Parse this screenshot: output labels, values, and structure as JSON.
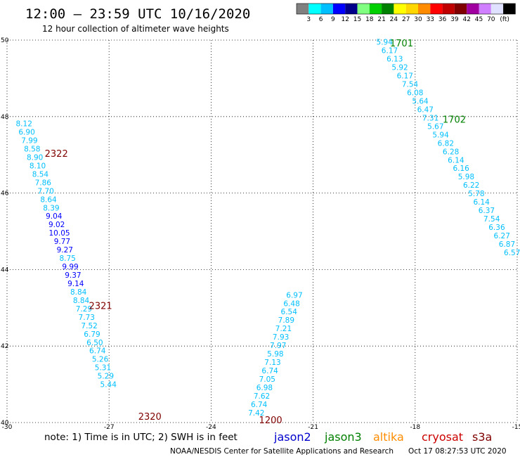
{
  "header": {
    "title": "12:00 – 23:59 UTC 10/16/2020",
    "subtitle": "12 hour collection of altimeter wave heights"
  },
  "colorbar": {
    "colors": [
      "#808080",
      "#00ffff",
      "#00bfff",
      "#0000ff",
      "#00008b",
      "#80ff80",
      "#00d000",
      "#008000",
      "#ffff00",
      "#ffd700",
      "#ff8c00",
      "#ff0000",
      "#c00000",
      "#800000",
      "#a000a0",
      "#d080ff",
      "#e0e0ff",
      "#000000"
    ],
    "labels": [
      "3",
      "6",
      "9",
      "12",
      "15",
      "18",
      "21",
      "24",
      "27",
      "30",
      "33",
      "36",
      "39",
      "42",
      "45",
      "70"
    ],
    "unit": "(ft)"
  },
  "map": {
    "lon_range": [
      -30,
      -15
    ],
    "lat_range": [
      40,
      50
    ],
    "x_ticks": [
      "-30",
      "-27",
      "-24",
      "-21",
      "-18",
      "-15"
    ],
    "y_ticks": [
      "40",
      "42",
      "44",
      "46",
      "48",
      "50"
    ],
    "grid": "dotted"
  },
  "satellite_colors": {
    "jason2": "#0000cd",
    "jason3": "#008000",
    "altika": "#ff8c00",
    "cryosat": "#cc0000",
    "s3a": "#800000"
  },
  "tracks": [
    {
      "label": "1701",
      "label_lon": -18.4,
      "label_lat": 49.93,
      "label_color": "#008000",
      "obs": [
        {
          "v": "5.94",
          "lon": -18.9,
          "lat": 49.95,
          "c": "#00bfff"
        },
        {
          "v": "6.17",
          "lon": -18.75,
          "lat": 49.73,
          "c": "#00bfff"
        },
        {
          "v": "6.13",
          "lon": -18.6,
          "lat": 49.51,
          "c": "#00bfff"
        },
        {
          "v": "5.92",
          "lon": -18.45,
          "lat": 49.29,
          "c": "#00bfff"
        },
        {
          "v": "6.17",
          "lon": -18.3,
          "lat": 49.07,
          "c": "#00bfff"
        },
        {
          "v": "7.54",
          "lon": -18.15,
          "lat": 48.85,
          "c": "#00bfff"
        },
        {
          "v": "6.08",
          "lon": -18.0,
          "lat": 48.63,
          "c": "#00bfff"
        },
        {
          "v": "5.64",
          "lon": -17.85,
          "lat": 48.41,
          "c": "#00bfff"
        },
        {
          "v": "6.47",
          "lon": -17.7,
          "lat": 48.19,
          "c": "#00bfff"
        },
        {
          "v": "7.31",
          "lon": -17.55,
          "lat": 47.97,
          "c": "#00bfff"
        },
        {
          "v": "5.67",
          "lon": -17.4,
          "lat": 47.75,
          "c": "#00bfff"
        },
        {
          "v": "5.94",
          "lon": -17.25,
          "lat": 47.53,
          "c": "#00bfff"
        }
      ]
    },
    {
      "label": "1702",
      "label_lon": -16.85,
      "label_lat": 47.93,
      "label_color": "#008000",
      "obs": [
        {
          "v": "6.82",
          "lon": -17.1,
          "lat": 47.31,
          "c": "#00bfff"
        },
        {
          "v": "6.28",
          "lon": -16.95,
          "lat": 47.09,
          "c": "#00bfff"
        },
        {
          "v": "6.14",
          "lon": -16.8,
          "lat": 46.87,
          "c": "#00bfff"
        },
        {
          "v": "6.16",
          "lon": -16.65,
          "lat": 46.65,
          "c": "#00bfff"
        },
        {
          "v": "5.98",
          "lon": -16.5,
          "lat": 46.43,
          "c": "#00bfff"
        },
        {
          "v": "6.22",
          "lon": -16.35,
          "lat": 46.21,
          "c": "#00bfff"
        },
        {
          "v": "5.78",
          "lon": -16.2,
          "lat": 45.99,
          "c": "#00bfff"
        },
        {
          "v": "6.14",
          "lon": -16.05,
          "lat": 45.77,
          "c": "#00bfff"
        },
        {
          "v": "6.37",
          "lon": -15.9,
          "lat": 45.55,
          "c": "#00bfff"
        },
        {
          "v": "7.54",
          "lon": -15.75,
          "lat": 45.33,
          "c": "#00bfff"
        },
        {
          "v": "6.36",
          "lon": -15.6,
          "lat": 45.11,
          "c": "#00bfff"
        },
        {
          "v": "6.27",
          "lon": -15.45,
          "lat": 44.89,
          "c": "#00bfff"
        },
        {
          "v": "6.87",
          "lon": -15.3,
          "lat": 44.67,
          "c": "#00bfff"
        },
        {
          "v": "6.57",
          "lon": -15.15,
          "lat": 44.45,
          "c": "#00bfff"
        }
      ]
    },
    {
      "label": "2322",
      "label_lon": -28.55,
      "label_lat": 47.04,
      "label_color": "#800000",
      "obs": [
        {
          "v": "8.12",
          "lon": -29.5,
          "lat": 47.82,
          "c": "#00bfff"
        },
        {
          "v": "6.90",
          "lon": -29.42,
          "lat": 47.6,
          "c": "#00bfff"
        },
        {
          "v": "7.99",
          "lon": -29.34,
          "lat": 47.38,
          "c": "#00bfff"
        },
        {
          "v": "8.58",
          "lon": -29.26,
          "lat": 47.16,
          "c": "#00bfff"
        },
        {
          "v": "8.90",
          "lon": -29.18,
          "lat": 46.94,
          "c": "#00bfff"
        },
        {
          "v": "8.10",
          "lon": -29.1,
          "lat": 46.72,
          "c": "#00bfff"
        },
        {
          "v": "8.54",
          "lon": -29.02,
          "lat": 46.5,
          "c": "#00bfff"
        },
        {
          "v": "7.86",
          "lon": -28.94,
          "lat": 46.28,
          "c": "#00bfff"
        },
        {
          "v": "7.70",
          "lon": -28.86,
          "lat": 46.06,
          "c": "#00bfff"
        },
        {
          "v": "8.64",
          "lon": -28.78,
          "lat": 45.84,
          "c": "#00bfff"
        },
        {
          "v": "8.39",
          "lon": -28.7,
          "lat": 45.62,
          "c": "#00bfff"
        },
        {
          "v": "9.04",
          "lon": -28.62,
          "lat": 45.4,
          "c": "#0000ff"
        },
        {
          "v": "9.02",
          "lon": -28.54,
          "lat": 45.18,
          "c": "#0000ff"
        },
        {
          "v": "10.05",
          "lon": -28.46,
          "lat": 44.96,
          "c": "#0000ff"
        },
        {
          "v": "9.77",
          "lon": -28.38,
          "lat": 44.74,
          "c": "#0000ff"
        }
      ]
    },
    {
      "label": "2321",
      "label_lon": -27.25,
      "label_lat": 43.06,
      "label_color": "#800000",
      "obs": [
        {
          "v": "9.27",
          "lon": -28.3,
          "lat": 44.52,
          "c": "#0000ff"
        },
        {
          "v": "8.75",
          "lon": -28.22,
          "lat": 44.3,
          "c": "#00bfff"
        },
        {
          "v": "9.99",
          "lon": -28.14,
          "lat": 44.08,
          "c": "#0000ff"
        },
        {
          "v": "9.37",
          "lon": -28.06,
          "lat": 43.86,
          "c": "#0000ff"
        },
        {
          "v": "9.14",
          "lon": -27.98,
          "lat": 43.64,
          "c": "#0000ff"
        },
        {
          "v": "8.84",
          "lon": -27.9,
          "lat": 43.42,
          "c": "#00bfff"
        },
        {
          "v": "8.84",
          "lon": -27.82,
          "lat": 43.2,
          "c": "#00bfff"
        },
        {
          "v": "7.29",
          "lon": -27.74,
          "lat": 42.98,
          "c": "#00bfff"
        },
        {
          "v": "7.73",
          "lon": -27.66,
          "lat": 42.76,
          "c": "#00bfff"
        },
        {
          "v": "7.52",
          "lon": -27.58,
          "lat": 42.54,
          "c": "#00bfff"
        },
        {
          "v": "6.79",
          "lon": -27.5,
          "lat": 42.32,
          "c": "#00bfff"
        },
        {
          "v": "6.50",
          "lon": -27.42,
          "lat": 42.1,
          "c": "#00bfff"
        },
        {
          "v": "6.74",
          "lon": -27.34,
          "lat": 41.88,
          "c": "#00bfff"
        },
        {
          "v": "5.26",
          "lon": -27.26,
          "lat": 41.66,
          "c": "#00bfff"
        },
        {
          "v": "5.31",
          "lon": -27.18,
          "lat": 41.44,
          "c": "#00bfff"
        },
        {
          "v": "5.29",
          "lon": -27.1,
          "lat": 41.22,
          "c": "#00bfff"
        },
        {
          "v": "5.44",
          "lon": -27.02,
          "lat": 41.0,
          "c": "#00bfff"
        }
      ]
    },
    {
      "label": "2320",
      "label_lon": -25.8,
      "label_lat": 40.17,
      "label_color": "#800000",
      "obs": []
    },
    {
      "label": "1200",
      "label_lon": -22.25,
      "label_lat": 40.07,
      "label_color": "#800000",
      "obs": [
        {
          "v": "6.97",
          "lon": -21.55,
          "lat": 43.34,
          "c": "#00bfff"
        },
        {
          "v": "6.48",
          "lon": -21.63,
          "lat": 43.12,
          "c": "#00bfff"
        },
        {
          "v": "6.54",
          "lon": -21.71,
          "lat": 42.9,
          "c": "#00bfff"
        },
        {
          "v": "7.89",
          "lon": -21.79,
          "lat": 42.68,
          "c": "#00bfff"
        },
        {
          "v": "7.21",
          "lon": -21.87,
          "lat": 42.46,
          "c": "#00bfff"
        },
        {
          "v": "7.93",
          "lon": -21.95,
          "lat": 42.24,
          "c": "#00bfff"
        },
        {
          "v": "7.97",
          "lon": -22.03,
          "lat": 42.02,
          "c": "#00bfff"
        },
        {
          "v": "5.98",
          "lon": -22.11,
          "lat": 41.8,
          "c": "#00bfff"
        },
        {
          "v": "7.13",
          "lon": -22.19,
          "lat": 41.58,
          "c": "#00bfff"
        },
        {
          "v": "6.74",
          "lon": -22.27,
          "lat": 41.36,
          "c": "#00bfff"
        },
        {
          "v": "7.05",
          "lon": -22.35,
          "lat": 41.14,
          "c": "#00bfff"
        },
        {
          "v": "6.98",
          "lon": -22.43,
          "lat": 40.92,
          "c": "#00bfff"
        },
        {
          "v": "7.62",
          "lon": -22.51,
          "lat": 40.7,
          "c": "#00bfff"
        },
        {
          "v": "6.74",
          "lon": -22.59,
          "lat": 40.48,
          "c": "#00bfff"
        },
        {
          "v": "7.42",
          "lon": -22.67,
          "lat": 40.26,
          "c": "#00bfff"
        }
      ]
    }
  ],
  "footer": {
    "note": "note: 1) Time is in UTC; 2) SWH is in feet",
    "legend": [
      {
        "name": "jason2",
        "color": "#0000cd"
      },
      {
        "name": "jason3",
        "color": "#008000"
      },
      {
        "name": "altika",
        "color": "#ff8c00"
      },
      {
        "name": "cryosat",
        "color": "#cc0000"
      },
      {
        "name": "s3a",
        "color": "#800000"
      }
    ],
    "credit": "NOAA/NESDIS Center for Satellite Applications and Research",
    "timestamp": "Oct 17 08:27:53 UTC 2020"
  }
}
